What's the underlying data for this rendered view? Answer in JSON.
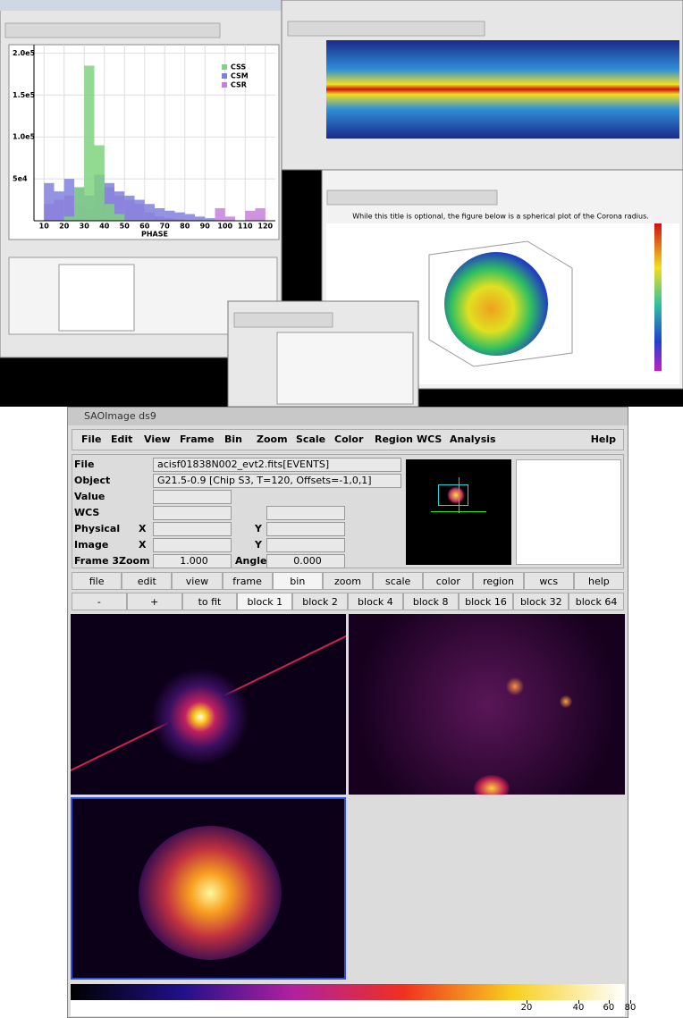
{
  "top_windows": {
    "histogram_window": {
      "type": "histogram",
      "xlabel": "PHASE",
      "xlim": [
        5,
        125
      ],
      "ylim": [
        0,
        210000
      ],
      "xticks": [
        10,
        20,
        30,
        40,
        50,
        60,
        70,
        80,
        90,
        100,
        110,
        120
      ],
      "yticks": [
        {
          "value": 200000,
          "label": "2.0e5"
        },
        {
          "value": 150000,
          "label": "1.5e5"
        },
        {
          "value": 100000,
          "label": "1.0e5"
        },
        {
          "value": 50000,
          "label": "5e4"
        }
      ],
      "bins": [
        5,
        10,
        15,
        20,
        25,
        30,
        35,
        40,
        45,
        50,
        55,
        60,
        65,
        70,
        75,
        80,
        85,
        90,
        95,
        100,
        105,
        110,
        115,
        120,
        125
      ],
      "series": [
        {
          "name": "CSS",
          "color": "#7fd27f",
          "values": [
            0,
            0,
            0,
            5000,
            40000,
            185000,
            90000,
            20000,
            8000,
            0,
            0,
            0,
            0,
            0,
            0,
            0,
            0,
            0,
            0,
            0,
            0,
            0,
            0,
            0
          ]
        },
        {
          "name": "CSM",
          "color": "#8080dc",
          "values": [
            0,
            45000,
            35000,
            50000,
            40000,
            30000,
            55000,
            45000,
            35000,
            30000,
            25000,
            20000,
            15000,
            12000,
            10000,
            8000,
            5000,
            3000,
            0,
            0,
            0,
            0,
            0,
            0
          ]
        },
        {
          "name": "CSR",
          "color": "#c880dc",
          "values": [
            0,
            20000,
            25000,
            30000,
            20000,
            15000,
            35000,
            40000,
            30000,
            25000,
            20000,
            10000,
            5000,
            3000,
            2000,
            0,
            0,
            0,
            15000,
            5000,
            0,
            12000,
            15000,
            0
          ]
        }
      ]
    },
    "sphere_window": {
      "title": "While this title is optional, the figure below is a spherical plot of the Corona radius."
    }
  },
  "ds9": {
    "title": "SAOImage ds9",
    "menu": [
      "File",
      "Edit",
      "View",
      "Frame",
      "Bin",
      "Zoom",
      "Scale",
      "Color",
      "Region",
      "WCS",
      "Analysis"
    ],
    "help_menu": "Help",
    "info": {
      "file_label": "File",
      "file": "acisf01838N002_evt2.fits[EVENTS]",
      "object_label": "Object",
      "object": "G21.5-0.9 [Chip S3, T=120, Offsets=-1,0,1]",
      "value_label": "Value",
      "wcs_label": "WCS",
      "physical_label": "Physical",
      "image_label": "Image",
      "x": "X",
      "y": "Y",
      "frame_label": "Frame 3",
      "zoom_label": "Zoom",
      "zoom": "1.000",
      "angle_label": "Angle",
      "angle": "0.000"
    },
    "buttons": [
      "file",
      "edit",
      "view",
      "frame",
      "bin",
      "zoom",
      "scale",
      "color",
      "region",
      "wcs",
      "help"
    ],
    "bin_buttons": [
      "-",
      "+",
      "to fit",
      "block 1",
      "block 2",
      "block 4",
      "block 8",
      "block 16",
      "block 32",
      "block 64"
    ],
    "colorbar_ticks": [
      20,
      40,
      60,
      80
    ]
  }
}
